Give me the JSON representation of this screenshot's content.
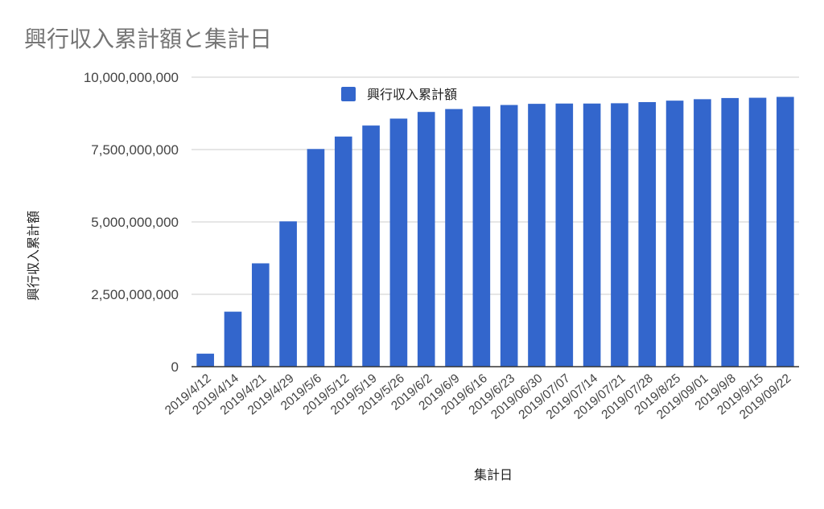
{
  "chart_data": {
    "type": "bar",
    "title": "興行収入累計額と集計日",
    "xlabel": "集計日",
    "ylabel": "興行収入累計額",
    "categories": [
      "2019/4/12",
      "2019/4/14",
      "2019/4/21",
      "2019/4/29",
      "2019/5/6",
      "2019/5/12",
      "2019/5/19",
      "2019/5/26",
      "2019/6/2",
      "2019/6/9",
      "2019/6/16",
      "2019/6/23",
      "2019/06/30",
      "2019/07/07",
      "2019/07/14",
      "2019/07/21",
      "2019/07/28",
      "2019/8/25",
      "2019/09/01",
      "2019/9/8",
      "2019/9/15",
      "2019/09/22"
    ],
    "series": [
      {
        "name": "興行収入累計額",
        "color": "#3366cc",
        "values": [
          450000000,
          1900000000,
          3570000000,
          5020000000,
          7520000000,
          7950000000,
          8330000000,
          8570000000,
          8800000000,
          8900000000,
          8990000000,
          9040000000,
          9080000000,
          9090000000,
          9090000000,
          9100000000,
          9140000000,
          9190000000,
          9240000000,
          9280000000,
          9290000000,
          9320000000
        ]
      }
    ],
    "ylim": [
      0,
      10000000000
    ],
    "yticks": [
      0,
      2500000000,
      5000000000,
      7500000000,
      10000000000
    ],
    "ytick_labels": [
      "0",
      "2,500,000,000",
      "5,000,000,000",
      "7,500,000,000",
      "10,000,000,000"
    ],
    "grid": true,
    "legend_position": "top-center",
    "gridline_color": "#cccccc",
    "axis_color": "#333333"
  }
}
